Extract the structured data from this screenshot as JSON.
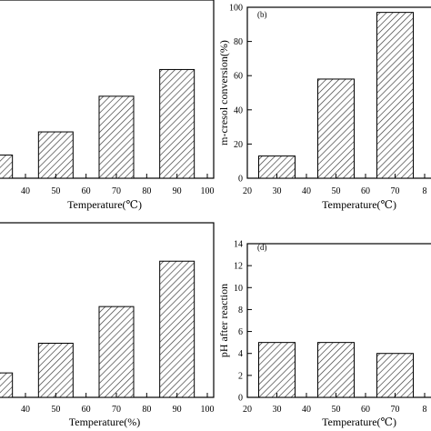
{
  "chart_data": [
    {
      "panel": "a",
      "panel_label": "",
      "type": "bar",
      "xlabel": "Temperature(℃)",
      "ylabel": "",
      "x_ticks": [
        "40",
        "50",
        "60",
        "70",
        "80",
        "90",
        "100"
      ],
      "y_ticks": [],
      "categories": [
        "30",
        "50",
        "70",
        "90"
      ],
      "values": [
        13,
        26,
        46,
        61
      ],
      "xlim": [
        20,
        100
      ],
      "ylim": [
        0,
        100
      ],
      "grid": false
    },
    {
      "panel": "b",
      "panel_label": "(b)",
      "type": "bar",
      "xlabel": "Temperature(℃)",
      "ylabel": "m-cresol conversion(%)",
      "x_ticks": [
        "20",
        "30",
        "40",
        "50",
        "60",
        "70",
        "8"
      ],
      "y_ticks": [
        "0",
        "20",
        "40",
        "60",
        "80",
        "100"
      ],
      "categories": [
        "30",
        "50",
        "70"
      ],
      "values": [
        13,
        58,
        97
      ],
      "xlim": [
        20,
        80
      ],
      "ylim": [
        0,
        100
      ],
      "grid": false
    },
    {
      "panel": "c",
      "panel_label": "",
      "type": "bar",
      "xlabel": "Temperature(%)",
      "ylabel": "",
      "x_ticks": [
        "40",
        "50",
        "60",
        "70",
        "80",
        "90",
        "100"
      ],
      "y_ticks": [],
      "categories": [
        "30",
        "50",
        "70",
        "90"
      ],
      "values": [
        14,
        31,
        52,
        78
      ],
      "xlim": [
        20,
        100
      ],
      "ylim": [
        0,
        100
      ],
      "grid": false
    },
    {
      "panel": "d",
      "panel_label": "(d)",
      "type": "bar",
      "xlabel": "Temperature(℃)",
      "ylabel": "pH after reaction",
      "x_ticks": [
        "20",
        "30",
        "40",
        "50",
        "60",
        "70",
        "8"
      ],
      "y_ticks": [
        "0",
        "2",
        "4",
        "6",
        "8",
        "10",
        "12",
        "14"
      ],
      "categories": [
        "30",
        "50",
        "70"
      ],
      "values": [
        5,
        5,
        4
      ],
      "xlim": [
        20,
        80
      ],
      "ylim": [
        0,
        14
      ],
      "grid": false
    }
  ]
}
